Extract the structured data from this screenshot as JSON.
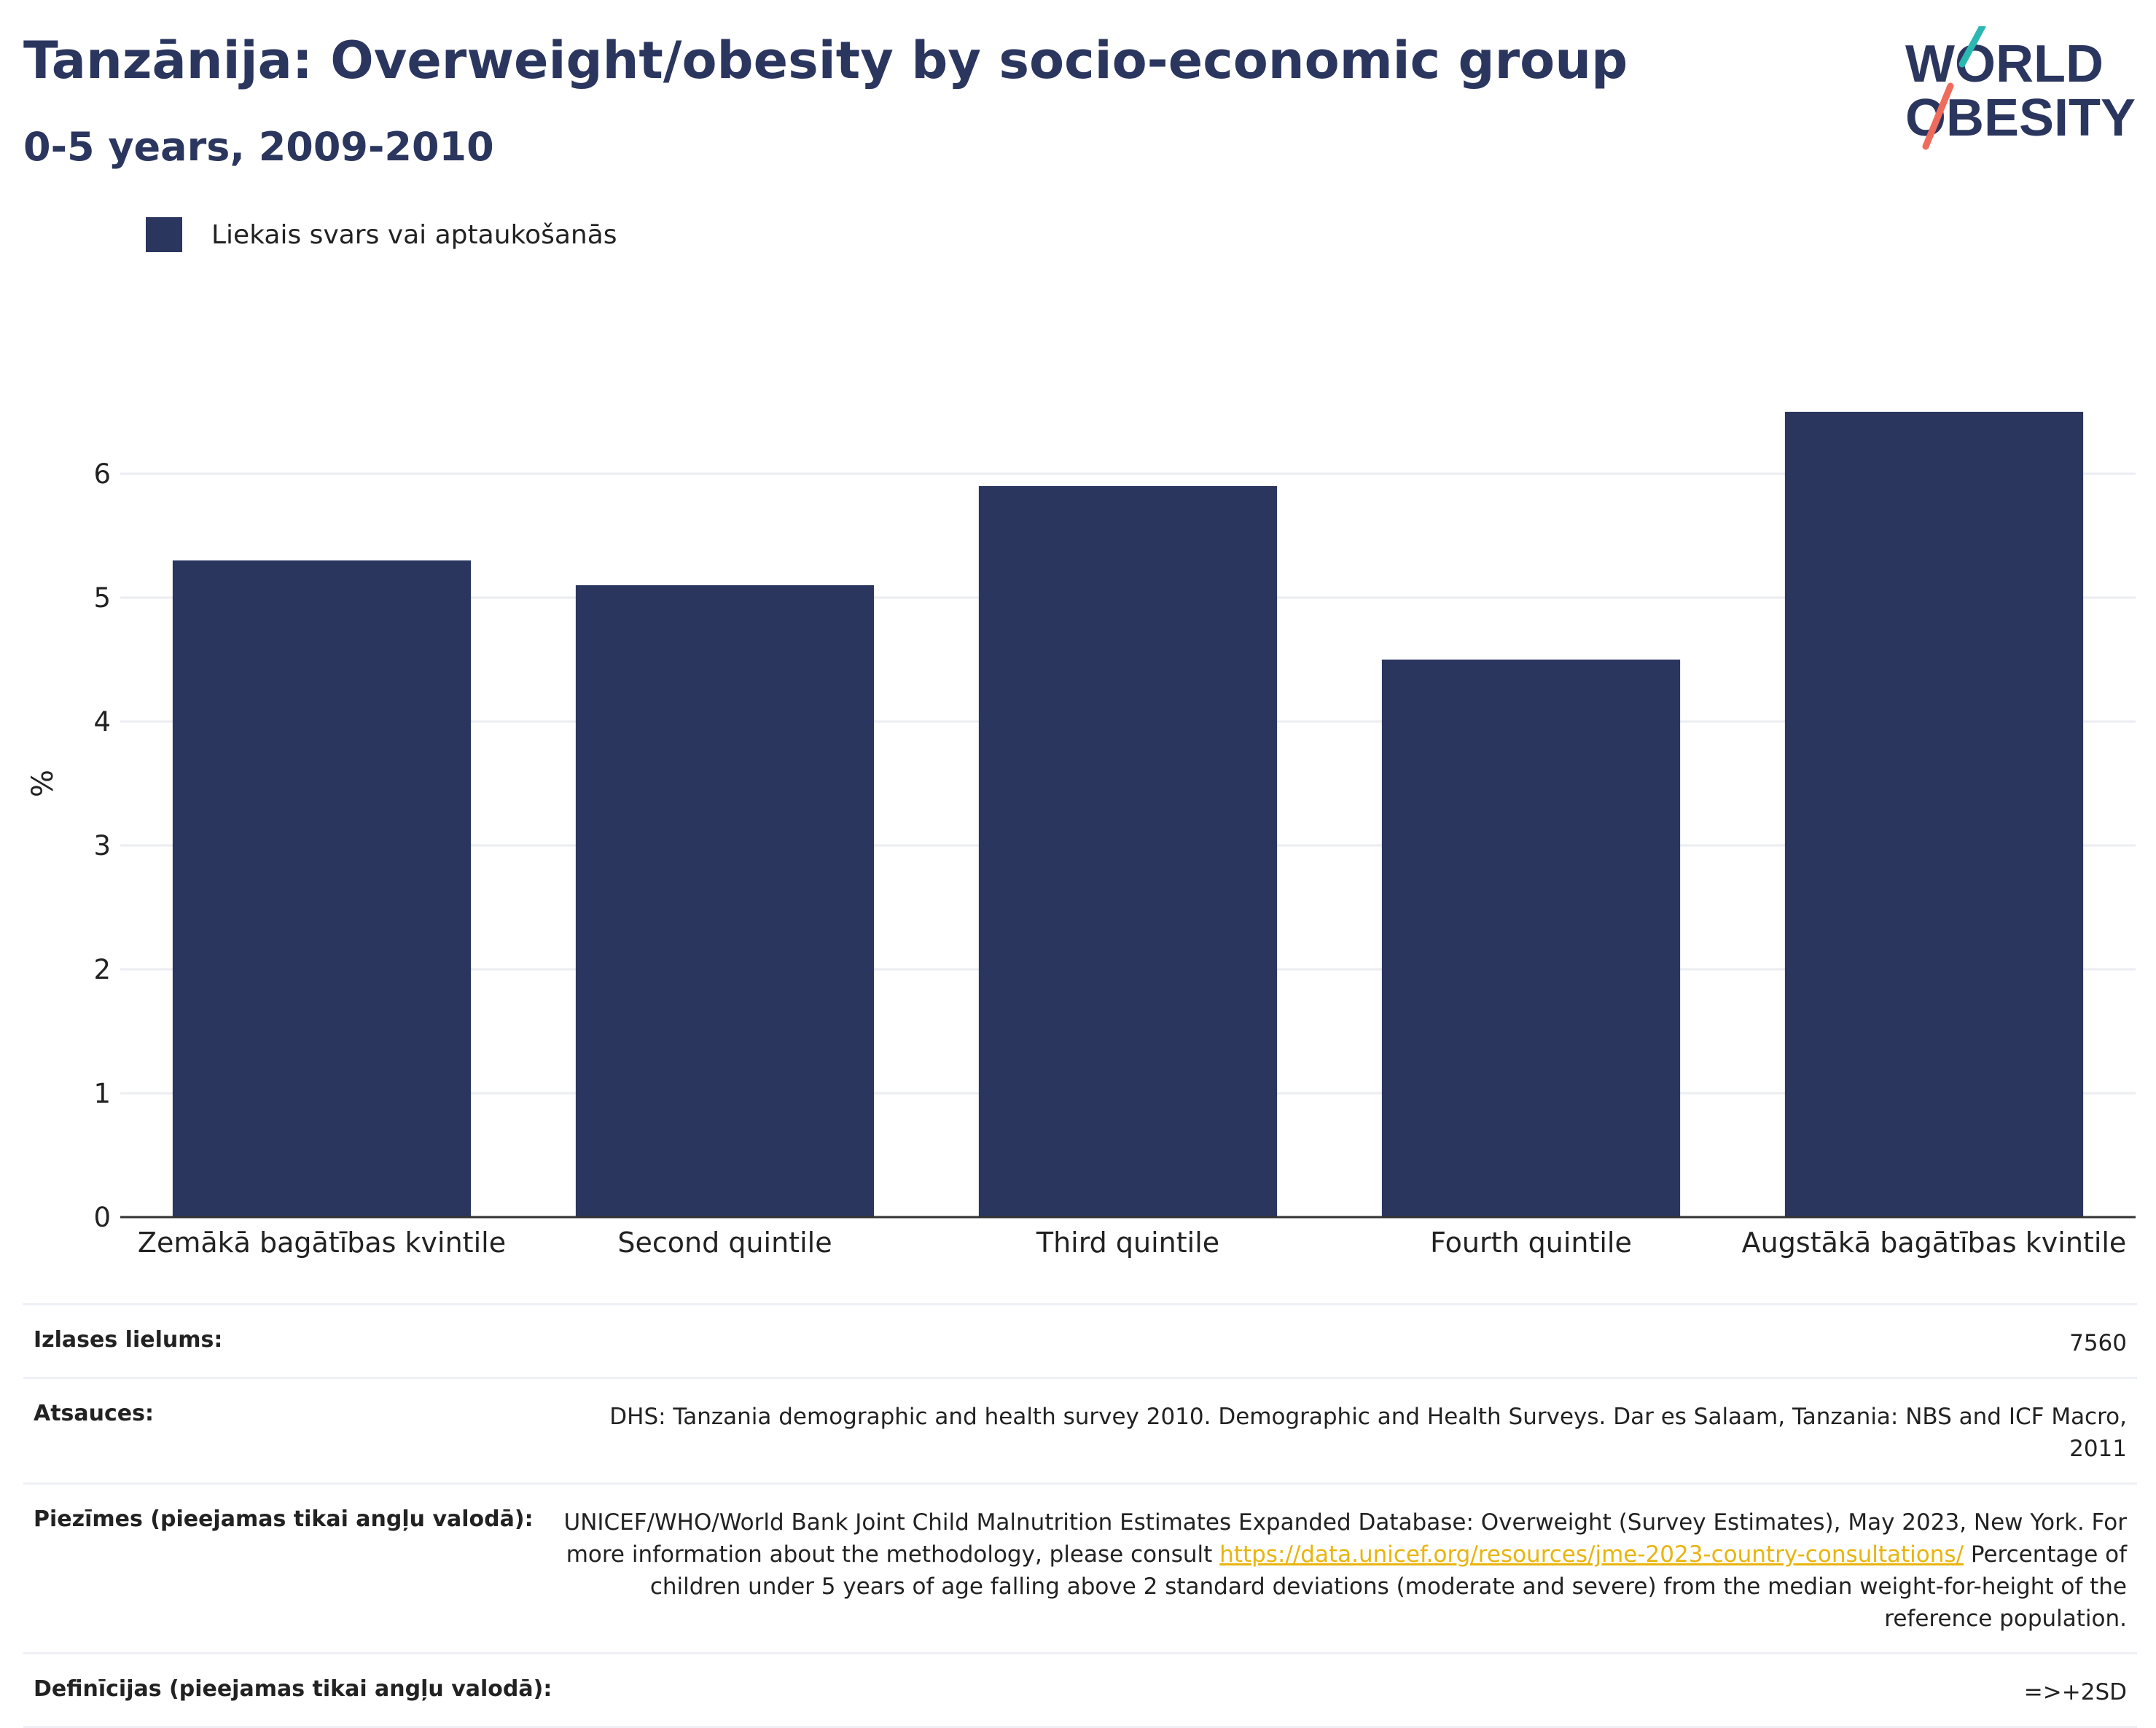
{
  "header": {
    "title": "Tanzānija: Overweight/obesity by socio-economic group",
    "subtitle": "0-5 years, 2009-2010"
  },
  "logo": {
    "line1": "WORLD",
    "line2": "OBESITY"
  },
  "colors": {
    "bar": "#2b365f",
    "text": "#2b365f",
    "grid": "#ebedf3",
    "axis": "#333333",
    "link": "#e8b50e"
  },
  "chart_data": {
    "type": "bar",
    "categories": [
      "Zemākā bagātības kvintile",
      "Second quintile",
      "Third quintile",
      "Fourth quintile",
      "Augstākā bagātības kvintile"
    ],
    "series": [
      {
        "name": "Liekais svars vai aptaukošanās",
        "values": [
          5.3,
          5.1,
          5.9,
          4.5,
          6.5
        ]
      }
    ],
    "ylabel": "%",
    "xlabel": "",
    "ylim": [
      0,
      7.0
    ],
    "yticks": [
      0,
      1,
      2,
      3,
      4,
      5,
      6
    ],
    "grid": true,
    "legend": "top-left"
  },
  "meta": {
    "sample": {
      "label": "Izlases lielums:",
      "value": "7560"
    },
    "sources": {
      "label": "Atsauces:",
      "value": "DHS: Tanzania demographic and health survey 2010. Demographic and Health Surveys. Dar es Salaam, Tanzania: NBS and ICF Macro, 2011"
    },
    "notes": {
      "label": "Piezīmes (pieejamas tikai angļu valodā):",
      "text1": "UNICEF/WHO/World Bank Joint Child Malnutrition Estimates Expanded Database: Overweight (Survey Estimates), May 2023, New York. For more information about the methodology, please consult ",
      "link": "https://data.unicef.org/resources/jme-2023-country-consultations/",
      "text2": " Percentage of children under 5 years of age falling above 2 standard deviations (moderate and severe) from the median weight-for-height of the reference population."
    },
    "definitions": {
      "label": "Definīcijas (pieejamas tikai angļu valodā):",
      "value": "=>+2SD"
    }
  }
}
